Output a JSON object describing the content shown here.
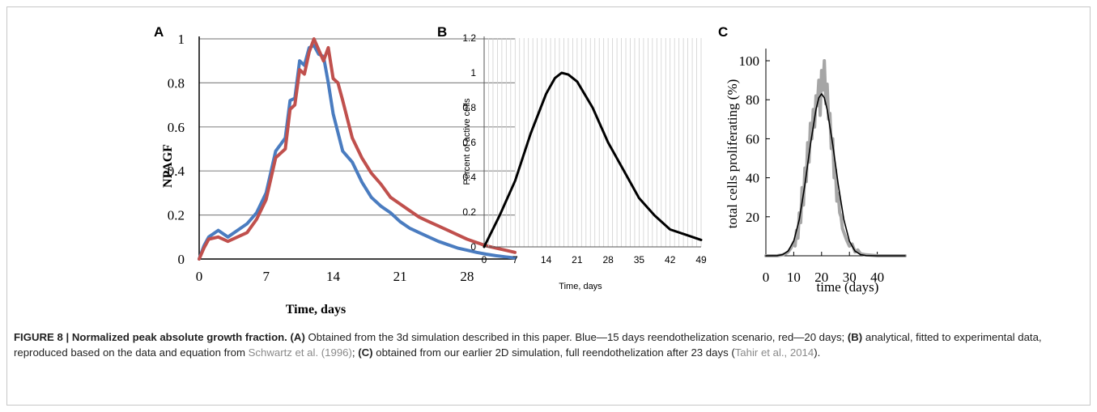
{
  "colors": {
    "blue": "#4a7cc0",
    "red": "#c0504d",
    "grey": "#a6a6a6",
    "black": "#000000",
    "grid": "#bfbfbf"
  },
  "caption": {
    "figure_label": "FIGURE 8 |",
    "figure_title": "Normalized peak absolute growth fraction.",
    "ref_a": "(A)",
    "text_a": "Obtained from the 3d simulation described in this paper. Blue—15 days reendothelization scenario, red—20 days;",
    "ref_b": "(B)",
    "text_b": "analytical, fitted to experimental data, reproduced based on the data and equation from",
    "cite_b": "Schwartz et al. (1996)",
    "sep_b": ";",
    "ref_c": "(C)",
    "text_c": "obtained from our earlier 2D simulation, full reendothelization after 23 days (",
    "cite_c": "Tahir et al., 2014",
    "end_c": ")."
  },
  "chart_data": [
    {
      "panel": "A",
      "type": "line",
      "xlabel": "Time, days",
      "ylabel": "NPAGF",
      "xlim": [
        0,
        33
      ],
      "ylim": [
        0,
        1
      ],
      "x_ticks": [
        0,
        7,
        14,
        21,
        28
      ],
      "y_ticks": [
        0,
        0.2,
        0.4,
        0.6,
        0.8,
        1
      ],
      "y_tick_labels": [
        "0",
        "0.2",
        "0.4",
        "0.6",
        "0.8",
        "1"
      ],
      "grid": "horizontal",
      "series": [
        {
          "color": "blue",
          "x": [
            0,
            0.5,
            1,
            2,
            3,
            4,
            5,
            6,
            7,
            8,
            8.5,
            9,
            9.5,
            10,
            10.5,
            11,
            11.5,
            12,
            12.5,
            13,
            13.5,
            14,
            15,
            16,
            17,
            18,
            19,
            20,
            21,
            22,
            23,
            24,
            25,
            26,
            27,
            28,
            29,
            30,
            31,
            32,
            33
          ],
          "y": [
            0,
            0.06,
            0.1,
            0.13,
            0.1,
            0.13,
            0.16,
            0.21,
            0.3,
            0.49,
            0.52,
            0.55,
            0.72,
            0.73,
            0.9,
            0.88,
            0.96,
            0.97,
            0.93,
            0.92,
            0.8,
            0.66,
            0.49,
            0.44,
            0.35,
            0.28,
            0.24,
            0.21,
            0.17,
            0.14,
            0.12,
            0.1,
            0.08,
            0.065,
            0.05,
            0.04,
            0.03,
            0.022,
            0.015,
            0.01,
            0.005
          ]
        },
        {
          "color": "red",
          "x": [
            0,
            0.5,
            1,
            2,
            3,
            4,
            5,
            6,
            7,
            8,
            8.5,
            9,
            9.5,
            10,
            10.5,
            11,
            11.5,
            12,
            12.5,
            13,
            13.5,
            14,
            14.5,
            15,
            16,
            17,
            18,
            19,
            20,
            21,
            22,
            23,
            24,
            25,
            26,
            27,
            28,
            29,
            30,
            31,
            32,
            33
          ],
          "y": [
            0,
            0.05,
            0.09,
            0.1,
            0.08,
            0.1,
            0.12,
            0.18,
            0.27,
            0.46,
            0.48,
            0.5,
            0.68,
            0.7,
            0.86,
            0.84,
            0.94,
            1.0,
            0.95,
            0.9,
            0.96,
            0.82,
            0.8,
            0.72,
            0.55,
            0.46,
            0.39,
            0.34,
            0.28,
            0.25,
            0.22,
            0.19,
            0.17,
            0.15,
            0.13,
            0.11,
            0.09,
            0.075,
            0.06,
            0.05,
            0.04,
            0.03
          ]
        }
      ]
    },
    {
      "panel": "B",
      "type": "line",
      "xlabel": "Time, days",
      "ylabel": "Percent of active cells",
      "xlim": [
        0,
        49
      ],
      "ylim": [
        0,
        1.2
      ],
      "x_ticks": [
        0,
        7,
        14,
        21,
        28,
        35,
        42,
        49
      ],
      "y_ticks": [
        0,
        0.2,
        0.4,
        0.6,
        0.8,
        1,
        1.2
      ],
      "y_tick_labels": [
        "0",
        "0.2",
        "0.4",
        "0.6",
        "0.8",
        "1",
        "1.2"
      ],
      "grid": "vertical",
      "series": [
        {
          "color": "black",
          "x": [
            0,
            3.5,
            7,
            10.5,
            14,
            16,
            17.5,
            19,
            21,
            24.5,
            28,
            31.5,
            35,
            38.5,
            42,
            45.5,
            49
          ],
          "y": [
            0,
            0.18,
            0.38,
            0.65,
            0.88,
            0.97,
            1.0,
            0.99,
            0.95,
            0.8,
            0.6,
            0.44,
            0.28,
            0.18,
            0.1,
            0.07,
            0.04
          ]
        }
      ]
    },
    {
      "panel": "C",
      "type": "line",
      "xlabel": "time (days)",
      "ylabel": "total cells proliferating (%)",
      "xlim": [
        0,
        50
      ],
      "ylim": [
        0,
        105
      ],
      "x_ticks": [
        0,
        10,
        20,
        30,
        40
      ],
      "y_ticks": [
        20,
        40,
        60,
        80,
        100
      ],
      "y_tick_labels": [
        "20",
        "40",
        "60",
        "80",
        "100"
      ],
      "grid": "none",
      "series": [
        {
          "color": "grey",
          "x": [
            0,
            2,
            4,
            6,
            7,
            8,
            9,
            10,
            10.5,
            11,
            11.5,
            12,
            12.5,
            13,
            13.5,
            14,
            14.5,
            15,
            15.5,
            16,
            16.5,
            17,
            17.5,
            18,
            18.5,
            19,
            19.5,
            20,
            20.5,
            21,
            21.5,
            22,
            22.5,
            23,
            23.5,
            24,
            24.5,
            25,
            25.5,
            26,
            26.5,
            27,
            27.5,
            28,
            29,
            30,
            31,
            32,
            33,
            34,
            36,
            40,
            45,
            50
          ],
          "y": [
            0,
            0,
            0,
            0.5,
            1,
            2,
            4,
            7,
            5,
            13,
            9,
            22,
            17,
            35,
            26,
            45,
            38,
            58,
            48,
            68,
            60,
            75,
            66,
            82,
            77,
            90,
            72,
            95,
            85,
            100,
            78,
            88,
            70,
            73,
            55,
            60,
            40,
            44,
            28,
            32,
            22,
            20,
            14,
            12,
            8,
            5,
            6,
            2,
            3,
            1,
            0.5,
            0,
            0,
            0
          ]
        },
        {
          "color": "black",
          "x": [
            0,
            4,
            6,
            8,
            10,
            12,
            14,
            16,
            18,
            19,
            20,
            21,
            22,
            24,
            26,
            28,
            30,
            32,
            34,
            36,
            40,
            45,
            50
          ],
          "y": [
            0,
            0.1,
            0.6,
            2.4,
            7.5,
            18.6,
            36.5,
            57,
            75,
            81,
            83,
            81,
            75,
            57,
            36.5,
            18.6,
            7.5,
            2.4,
            0.6,
            0.1,
            0,
            0,
            0
          ]
        }
      ]
    }
  ]
}
